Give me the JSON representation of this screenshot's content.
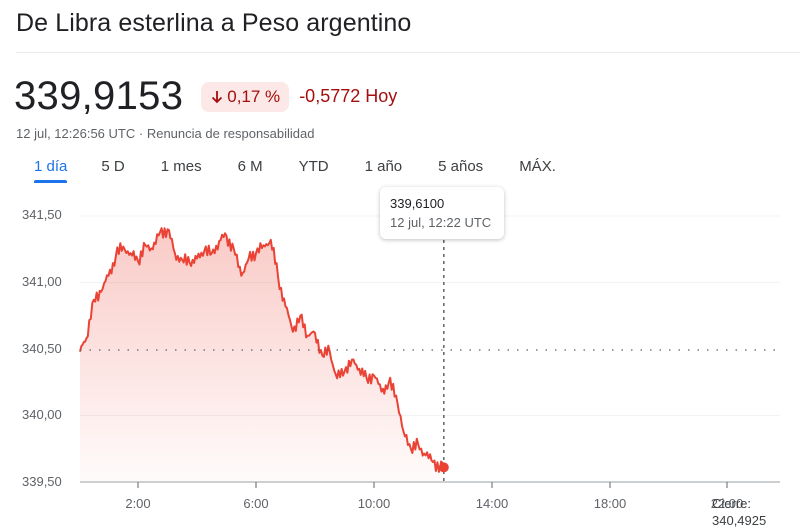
{
  "header": {
    "title": "De Libra esterlina a Peso argentino"
  },
  "quote": {
    "price": "339,9153",
    "change_percent": "0,17 %",
    "change_direction_icon": "arrow-down-icon",
    "change_value": "-0,5772 Hoy",
    "timestamp": "12 jul, 12:26:56 UTC",
    "separator": "·",
    "disclaimer_link": "Renuncia de responsabilidad"
  },
  "colors": {
    "negative": "#a50e0e",
    "negative_bg": "#fce8e6",
    "line": "#ea4335",
    "accent": "#1a73e8"
  },
  "tabs": [
    {
      "label": "1 día",
      "active": true
    },
    {
      "label": "5 D",
      "active": false
    },
    {
      "label": "1 mes",
      "active": false
    },
    {
      "label": "6 M",
      "active": false
    },
    {
      "label": "YTD",
      "active": false
    },
    {
      "label": "1 año",
      "active": false
    },
    {
      "label": "5 años",
      "active": false
    },
    {
      "label": "MÁX.",
      "active": false
    }
  ],
  "tooltip": {
    "value": "339,6100",
    "datetime": "12 jul, 12:22 UTC"
  },
  "previous_close": {
    "label": "Cierre:",
    "value": "340,4925"
  },
  "chart_data": {
    "type": "area",
    "title": "De Libra esterlina a Peso argentino",
    "xlabel": "",
    "ylabel": "",
    "x_tick_labels": [
      "2:00",
      "6:00",
      "10:00",
      "14:00",
      "18:00",
      "22:00"
    ],
    "y_tick_labels": [
      "341,50",
      "341,00",
      "340,50",
      "340,00",
      "339,50"
    ],
    "ylim": [
      339.5,
      341.5
    ],
    "xlim_hours": [
      0,
      24
    ],
    "grid": true,
    "reference_line": {
      "label": "Cierre",
      "value": 340.4925,
      "style": "dotted"
    },
    "crosshair": {
      "time": "12:22",
      "value": 339.61
    },
    "series": [
      {
        "name": "GBP/ARS",
        "x": [
          "0:02",
          "0:15",
          "0:30",
          "0:45",
          "1:00",
          "1:15",
          "1:30",
          "1:45",
          "2:00",
          "2:15",
          "2:30",
          "2:45",
          "3:00",
          "3:15",
          "3:30",
          "3:45",
          "4:00",
          "4:15",
          "4:30",
          "4:45",
          "5:00",
          "5:15",
          "5:30",
          "5:45",
          "6:00",
          "6:15",
          "6:30",
          "6:45",
          "7:00",
          "7:15",
          "7:30",
          "7:45",
          "8:00",
          "8:15",
          "8:30",
          "8:45",
          "9:00",
          "9:15",
          "9:30",
          "9:45",
          "10:00",
          "10:15",
          "10:30",
          "10:45",
          "11:00",
          "11:15",
          "11:30",
          "11:45",
          "12:00",
          "12:15",
          "12:22"
        ],
        "values": [
          340.48,
          340.58,
          340.87,
          340.93,
          341.05,
          341.2,
          341.27,
          341.22,
          341.16,
          341.28,
          341.25,
          341.38,
          341.4,
          341.22,
          341.17,
          341.15,
          341.18,
          341.24,
          341.22,
          341.31,
          341.35,
          341.25,
          341.05,
          341.18,
          341.22,
          341.28,
          341.32,
          341.04,
          340.82,
          340.63,
          340.75,
          340.6,
          340.62,
          340.45,
          340.48,
          340.28,
          340.33,
          340.42,
          340.35,
          340.28,
          340.3,
          340.18,
          340.25,
          340.15,
          339.88,
          339.75,
          339.78,
          339.7,
          339.65,
          339.62,
          339.61
        ]
      }
    ]
  }
}
